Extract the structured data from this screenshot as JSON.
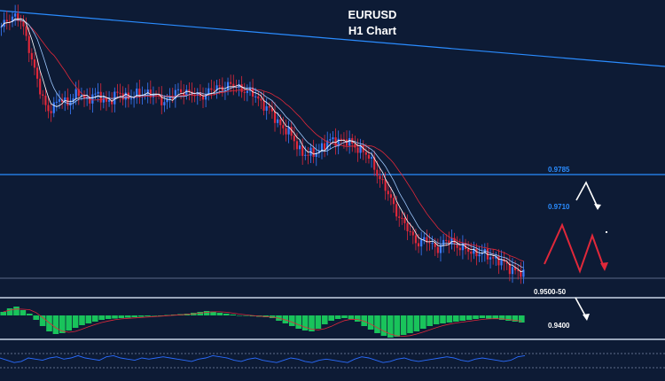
{
  "chart_data": {
    "type": "line",
    "title": "EURUSD",
    "subtitle": "H1 Chart",
    "colors": {
      "background": "#0d1b35",
      "bull_candle": "#3a7bff",
      "bear_candle": "#e0283a",
      "ma_fast": "#ffffff",
      "ma_mid": "#9fc9ff",
      "ma_slow": "#e0283a",
      "trendline": "#2a8cff",
      "resistance": "#2a8cff",
      "support": "#c8d4e6",
      "histogram": "#19c35b",
      "oscillator": "#2a6cff",
      "arrow_white": "#ffffff",
      "arrow_red": "#e0283a"
    },
    "price_path": [
      0.992,
      0.9935,
      0.994,
      0.993,
      0.99,
      0.986,
      0.982,
      0.9795,
      0.98,
      0.9812,
      0.9805,
      0.9815,
      0.982,
      0.981,
      0.9818,
      0.9815,
      0.9808,
      0.9812,
      0.982,
      0.9816,
      0.9814,
      0.9818,
      0.9822,
      0.982,
      0.9812,
      0.9808,
      0.9815,
      0.9822,
      0.9825,
      0.982,
      0.9815,
      0.9818,
      0.9825,
      0.9828,
      0.983,
      0.9833,
      0.983,
      0.9827,
      0.9822,
      0.9815,
      0.9805,
      0.9795,
      0.978,
      0.977,
      0.976,
      0.9745,
      0.973,
      0.9725,
      0.9728,
      0.9738,
      0.9745,
      0.9748,
      0.975,
      0.9745,
      0.974,
      0.9735,
      0.9725,
      0.971,
      0.969,
      0.967,
      0.965,
      0.963,
      0.9615,
      0.96,
      0.959,
      0.9595,
      0.9588,
      0.9582,
      0.9592,
      0.9595,
      0.9585,
      0.958,
      0.9578,
      0.9575,
      0.9572,
      0.957,
      0.9565,
      0.9558,
      0.9552,
      0.9548,
      0.954
    ],
    "levels": [
      {
        "label": "0.9785",
        "value": 0.9785,
        "color": "#2a8cff"
      },
      {
        "label": "0.9710",
        "value": 0.971,
        "color": "#2a8cff"
      },
      {
        "label": "0.9500-50",
        "value": 0.953,
        "color": "#ffffff"
      },
      {
        "label": "0.9400",
        "value": 0.94,
        "color": "#ffffff"
      }
    ],
    "histogram": [
      0.4,
      0.8,
      1.0,
      0.6,
      0.2,
      -0.5,
      -1.2,
      -1.8,
      -2.1,
      -2.0,
      -1.7,
      -1.4,
      -1.1,
      -0.9,
      -0.7,
      -0.5,
      -0.4,
      -0.35,
      -0.3,
      -0.25,
      -0.2,
      -0.15,
      -0.1,
      -0.05,
      0.0,
      0.05,
      0.1,
      0.15,
      0.2,
      0.3,
      0.4,
      0.5,
      0.45,
      0.3,
      0.2,
      0.1,
      0.0,
      -0.05,
      -0.1,
      -0.15,
      -0.2,
      -0.3,
      -0.6,
      -0.9,
      -1.2,
      -1.5,
      -1.7,
      -1.8,
      -1.5,
      -1.0,
      -0.6,
      -0.4,
      -0.3,
      -0.4,
      -0.7,
      -1.2,
      -1.6,
      -2.0,
      -2.3,
      -2.5,
      -2.4,
      -2.2,
      -2.0,
      -1.8,
      -1.5,
      -1.2,
      -1.0,
      -0.9,
      -0.8,
      -0.7,
      -0.6,
      -0.5,
      -0.4,
      -0.3,
      -0.35,
      -0.4,
      -0.5,
      -0.6,
      -0.7,
      -0.8
    ],
    "oscillator": [
      0.5,
      0.4,
      0.3,
      0.35,
      0.5,
      0.45,
      0.4,
      0.5,
      0.55,
      0.45,
      0.5,
      0.6,
      0.5,
      0.45,
      0.4,
      0.55,
      0.6,
      0.5,
      0.45,
      0.4,
      0.5,
      0.45,
      0.5,
      0.55,
      0.5,
      0.45,
      0.4,
      0.35,
      0.45,
      0.5,
      0.6,
      0.55,
      0.5,
      0.4,
      0.35,
      0.45,
      0.5,
      0.4,
      0.35,
      0.3,
      0.4,
      0.5,
      0.45,
      0.35,
      0.3,
      0.4,
      0.45,
      0.4,
      0.35,
      0.3,
      0.45,
      0.55,
      0.5,
      0.4,
      0.3,
      0.35,
      0.45,
      0.5,
      0.4,
      0.35,
      0.4,
      0.45,
      0.5,
      0.55,
      0.5,
      0.4,
      0.35,
      0.45,
      0.5,
      0.45,
      0.4,
      0.35,
      0.4,
      0.55,
      0.6
    ],
    "legend": "none",
    "grid": false
  }
}
